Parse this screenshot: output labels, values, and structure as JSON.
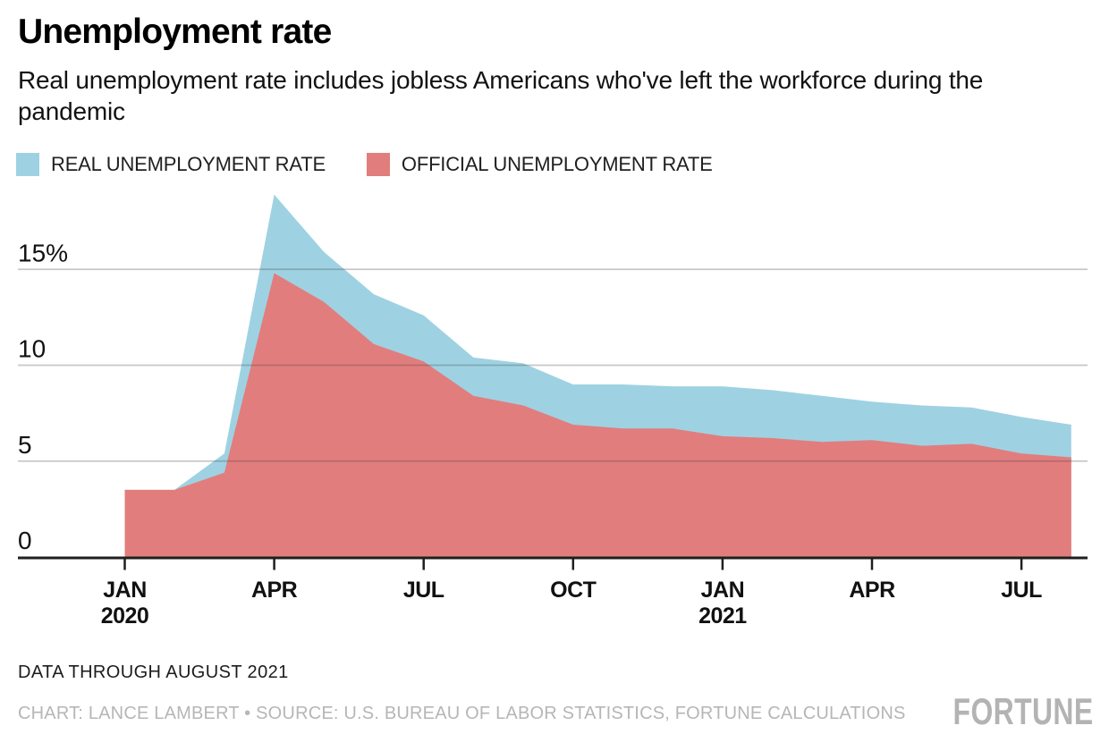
{
  "header": {
    "title": "Unemployment rate",
    "subtitle": "Real unemployment rate includes jobless Americans who've left the workforce during the pandemic"
  },
  "legend": [
    {
      "label": "REAL UNEMPLOYMENT RATE",
      "color": "#9ed2e2"
    },
    {
      "label": "OFFICIAL UNEMPLOYMENT RATE",
      "color": "#e27d7e"
    }
  ],
  "chart_data": {
    "type": "area",
    "title": "Unemployment rate",
    "value_unit": "%",
    "x": [
      "Jan 2020",
      "Feb 2020",
      "Mar 2020",
      "Apr 2020",
      "May 2020",
      "Jun 2020",
      "Jul 2020",
      "Aug 2020",
      "Sep 2020",
      "Oct 2020",
      "Nov 2020",
      "Dec 2020",
      "Jan 2021",
      "Feb 2021",
      "Mar 2021",
      "Apr 2021",
      "May 2021",
      "Jun 2021",
      "Jul 2021",
      "Aug 2021"
    ],
    "series": [
      {
        "name": "REAL UNEMPLOYMENT RATE",
        "color": "#9ed2e2",
        "values": [
          3.5,
          3.5,
          5.4,
          18.9,
          15.9,
          13.7,
          12.6,
          10.4,
          10.1,
          9.0,
          9.0,
          8.9,
          8.9,
          8.7,
          8.4,
          8.1,
          7.9,
          7.8,
          7.3,
          6.9
        ]
      },
      {
        "name": "OFFICIAL UNEMPLOYMENT RATE",
        "color": "#e27d7e",
        "values": [
          3.5,
          3.5,
          4.4,
          14.8,
          13.3,
          11.1,
          10.2,
          8.4,
          7.9,
          6.9,
          6.7,
          6.7,
          6.3,
          6.2,
          6.0,
          6.1,
          5.8,
          5.9,
          5.4,
          5.2
        ]
      }
    ],
    "y_ticks": [
      {
        "value": 0,
        "label": "0"
      },
      {
        "value": 5,
        "label": "5"
      },
      {
        "value": 10,
        "label": "10"
      },
      {
        "value": 15,
        "label": "15%"
      }
    ],
    "x_ticks": [
      {
        "index": 0,
        "label": "JAN",
        "sublabel": "2020"
      },
      {
        "index": 3,
        "label": "APR"
      },
      {
        "index": 6,
        "label": "JUL"
      },
      {
        "index": 9,
        "label": "OCT"
      },
      {
        "index": 12,
        "label": "JAN",
        "sublabel": "2021"
      },
      {
        "index": 15,
        "label": "APR"
      },
      {
        "index": 18,
        "label": "JUL"
      }
    ],
    "ylim": [
      0,
      19.5
    ],
    "grid": true,
    "legend_position": "top-left"
  },
  "footer": {
    "note": "DATA THROUGH AUGUST 2021",
    "credit": "CHART: LANCE LAMBERT • SOURCE: U.S. BUREAU OF LABOR STATISTICS, FORTUNE CALCULATIONS",
    "brand": "FORTUNE"
  }
}
